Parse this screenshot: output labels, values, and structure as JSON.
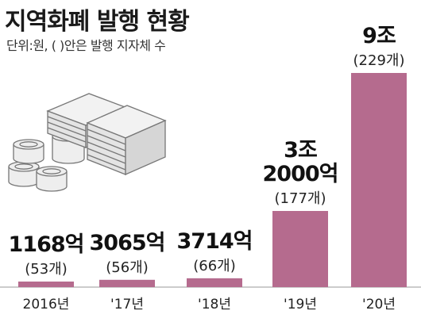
{
  "header": {
    "title": "지역화폐 발행 현황",
    "subtitle": "단위:원, (  )안은 발행 지자체 수"
  },
  "colors": {
    "bar": "#b56b8e",
    "text": "#1a1a1a",
    "axis": "#999999",
    "coin_fill": "#eeeeee",
    "coin_stroke": "#777777"
  },
  "icons": [
    "coin-stack-icon",
    "banknote-stack-icon"
  ],
  "chart_data": {
    "type": "bar",
    "title": "지역화폐 발행 현황",
    "subtitle": "단위:원, (  )안은 발행 지자체 수",
    "xlabel": "",
    "ylabel": "",
    "unit": "억원",
    "categories": [
      "2016년",
      "'17년",
      "'18년",
      "'19년",
      "'20년"
    ],
    "values": [
      1168,
      3065,
      3714,
      32000,
      90000
    ],
    "value_labels": [
      [
        "1168억"
      ],
      [
        "3065억"
      ],
      [
        "3714억"
      ],
      [
        "3조",
        "2000억"
      ],
      [
        "9조"
      ]
    ],
    "counts": [
      53,
      56,
      66,
      177,
      229
    ],
    "count_labels": [
      "(53개)",
      "(56개)",
      "(66개)",
      "(177개)",
      "(229개)"
    ],
    "ylim": [
      0,
      90000
    ],
    "grid": false,
    "legend": "none"
  }
}
